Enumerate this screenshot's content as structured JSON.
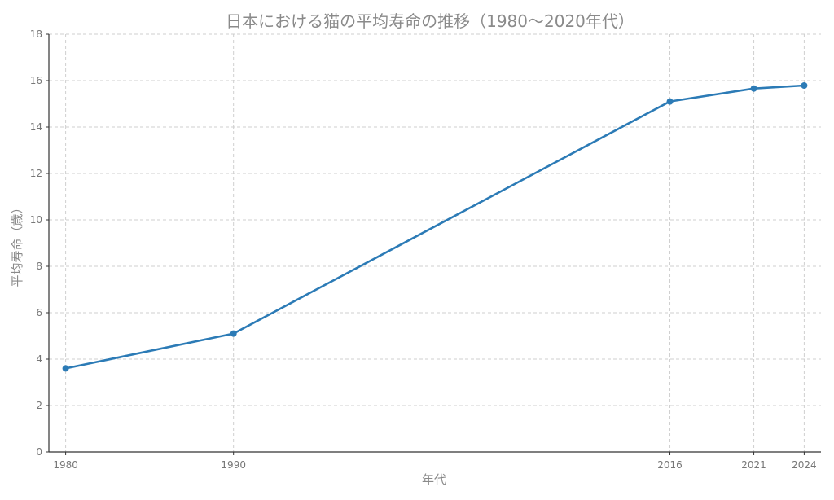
{
  "chart_data": {
    "type": "line",
    "title": "日本における猫の平均寿命の推移（1980〜2020年代）",
    "xlabel": "年代",
    "ylabel": "平均寿命（歳）",
    "x": [
      1980,
      1990,
      2016,
      2021,
      2024
    ],
    "x_tick_labels": [
      "1980",
      "1990",
      "2016",
      "2021",
      "2024"
    ],
    "y_ticks": [
      0,
      2,
      4,
      6,
      8,
      10,
      12,
      14,
      16,
      18
    ],
    "xlim": [
      1979,
      2025
    ],
    "ylim": [
      0,
      18
    ],
    "grid": true,
    "series": [
      {
        "values": [
          3.6,
          5.1,
          15.1,
          15.66,
          15.79
        ],
        "color": "#2c7bb6",
        "marker": "circle"
      }
    ]
  }
}
